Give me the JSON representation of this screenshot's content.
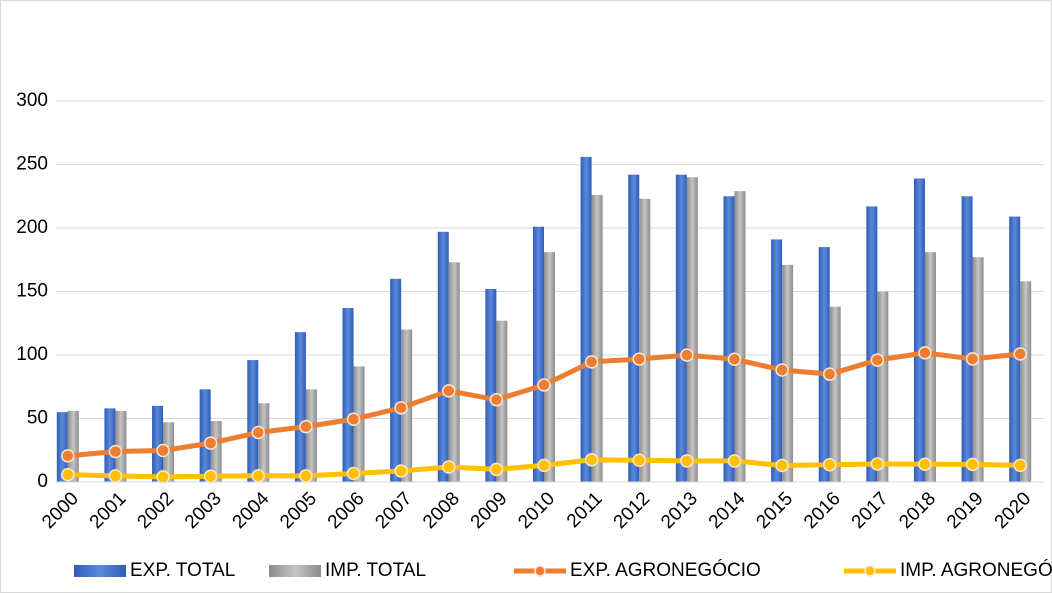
{
  "chart_data": {
    "type": "bar",
    "categories": [
      "2000",
      "2001",
      "2002",
      "2003",
      "2004",
      "2005",
      "2006",
      "2007",
      "2008",
      "2009",
      "2010",
      "2011",
      "2012",
      "2013",
      "2014",
      "2015",
      "2016",
      "2017",
      "2018",
      "2019",
      "2020"
    ],
    "series": [
      {
        "name": "EXP. TOTAL",
        "type": "bar",
        "color": "#4472c4",
        "values": [
          55,
          58,
          60,
          73,
          96,
          118,
          137,
          160,
          197,
          152,
          201,
          256,
          242,
          242,
          225,
          191,
          185,
          217,
          239,
          225,
          209
        ]
      },
      {
        "name": "IMP. TOTAL",
        "type": "bar",
        "color": "#a5a5a5",
        "values": [
          56,
          56,
          47,
          48,
          62,
          73,
          91,
          120,
          173,
          127,
          181,
          226,
          223,
          240,
          229,
          171,
          138,
          150,
          181,
          177,
          158
        ]
      },
      {
        "name": "EXP. AGRONEGÓCIO",
        "type": "line",
        "color": "#ed7d31",
        "values": [
          20.6,
          24,
          24.8,
          30.6,
          39,
          43.6,
          49.4,
          58.4,
          71.8,
          64.8,
          76.4,
          94.6,
          96.8,
          99.9,
          96.7,
          88.2,
          84.9,
          96,
          101.7,
          96.9,
          100.8
        ]
      },
      {
        "name": "IMP. AGRONEGÓCIO",
        "type": "line",
        "color": "#ffc000",
        "values": [
          5.8,
          4.8,
          4,
          4.5,
          4.9,
          4.8,
          6.7,
          8.7,
          11.8,
          9.9,
          13.1,
          17.5,
          17.1,
          16.6,
          16.6,
          13,
          13.6,
          14.2,
          14,
          13.9,
          13.1
        ]
      }
    ],
    "ylim": [
      0,
      300
    ],
    "yticks": [
      0,
      50,
      100,
      150,
      200,
      250,
      300
    ],
    "grid": true,
    "legend": "bottom"
  }
}
